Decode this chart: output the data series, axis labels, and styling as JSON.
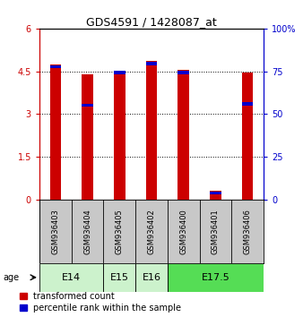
{
  "title": "GDS4591 / 1428087_at",
  "samples": [
    "GSM936403",
    "GSM936404",
    "GSM936405",
    "GSM936402",
    "GSM936400",
    "GSM936401",
    "GSM936406"
  ],
  "red_values": [
    4.75,
    4.4,
    4.5,
    4.85,
    4.55,
    0.3,
    4.45
  ],
  "blue_values": [
    0.12,
    0.12,
    0.12,
    0.12,
    0.12,
    0.08,
    0.12
  ],
  "blue_bottoms": [
    4.6,
    3.25,
    4.4,
    4.7,
    4.4,
    0.2,
    3.3
  ],
  "ylim_left": [
    0,
    6
  ],
  "ylim_right": [
    0,
    100
  ],
  "yticks_left": [
    0,
    1.5,
    3,
    4.5,
    6
  ],
  "ytick_labels_left": [
    "0",
    "1.5",
    "3",
    "4.5",
    "6"
  ],
  "yticks_right": [
    0,
    25,
    50,
    75,
    100
  ],
  "ytick_labels_right": [
    "0",
    "25",
    "50",
    "75",
    "100%"
  ],
  "bar_color_red": "#cc0000",
  "bar_color_blue": "#0000cc",
  "bar_width": 0.35,
  "background_color": "#ffffff",
  "sample_box_color": "#c8c8c8",
  "legend_red": "transformed count",
  "legend_blue": "percentile rank within the sample",
  "age_groups": [
    {
      "label": "E14",
      "start": 0,
      "end": 1,
      "color": "#ccf2cc"
    },
    {
      "label": "E15",
      "start": 2,
      "end": 2,
      "color": "#ccf2cc"
    },
    {
      "label": "E16",
      "start": 3,
      "end": 3,
      "color": "#ccf2cc"
    },
    {
      "label": "E17.5",
      "start": 4,
      "end": 6,
      "color": "#55dd55"
    }
  ],
  "gridline_vals": [
    1.5,
    3.0,
    4.5
  ],
  "title_fontsize": 9,
  "tick_fontsize": 7,
  "sample_fontsize": 6,
  "age_fontsize": 8
}
